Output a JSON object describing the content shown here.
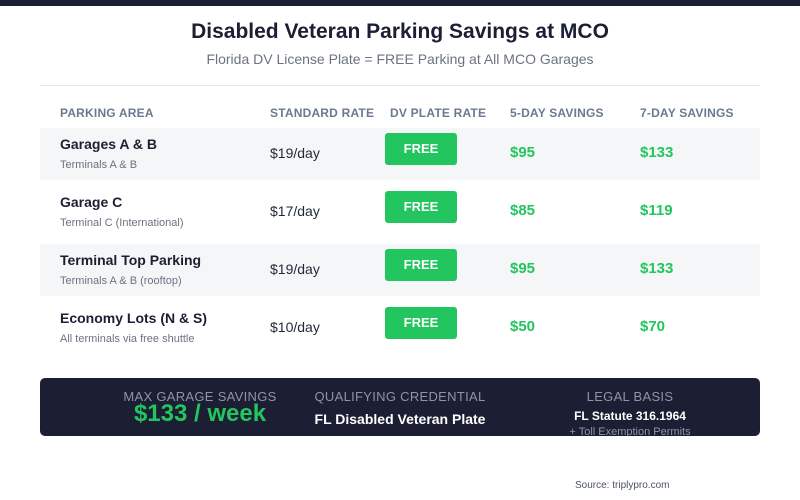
{
  "header": {
    "title": "Disabled Veteran Parking Savings at MCO",
    "subtitle": "Florida DV License Plate = FREE Parking at All MCO Garages"
  },
  "table": {
    "columns": [
      "PARKING AREA",
      "STANDARD RATE",
      "DV PLATE RATE",
      "5-DAY SAVINGS",
      "7-DAY SAVINGS"
    ],
    "rows": [
      {
        "name": "Garages A & B",
        "sub": "Terminals A & B",
        "rate": "$19/day",
        "dv_rate": "FREE",
        "save5": "$95",
        "save7": "$133"
      },
      {
        "name": "Garage C",
        "sub": "Terminal C (International)",
        "rate": "$17/day",
        "dv_rate": "FREE",
        "save5": "$85",
        "save7": "$119"
      },
      {
        "name": "Terminal Top Parking",
        "sub": "Terminals A & B (rooftop)",
        "rate": "$19/day",
        "dv_rate": "FREE",
        "save5": "$95",
        "save7": "$133"
      },
      {
        "name": "Economy Lots (N & S)",
        "sub": "All terminals via free shuttle",
        "rate": "$10/day",
        "dv_rate": "FREE",
        "save5": "$50",
        "save7": "$70"
      }
    ]
  },
  "summary": {
    "max_label": "MAX GARAGE SAVINGS",
    "max_value": "$133 / week",
    "credential_label": "QUALIFYING CREDENTIAL",
    "credential_value": "FL Disabled Veteran Plate",
    "legal_label": "LEGAL BASIS",
    "legal_value": "FL Statute 316.1964",
    "legal_note": "+ Toll Exemption Permits"
  },
  "footer": {
    "source": "Source: triplypro.com"
  },
  "colors": {
    "navy": "#1c1e33",
    "accent_green": "#22c55e",
    "row_shade": "#f5f6f8"
  }
}
